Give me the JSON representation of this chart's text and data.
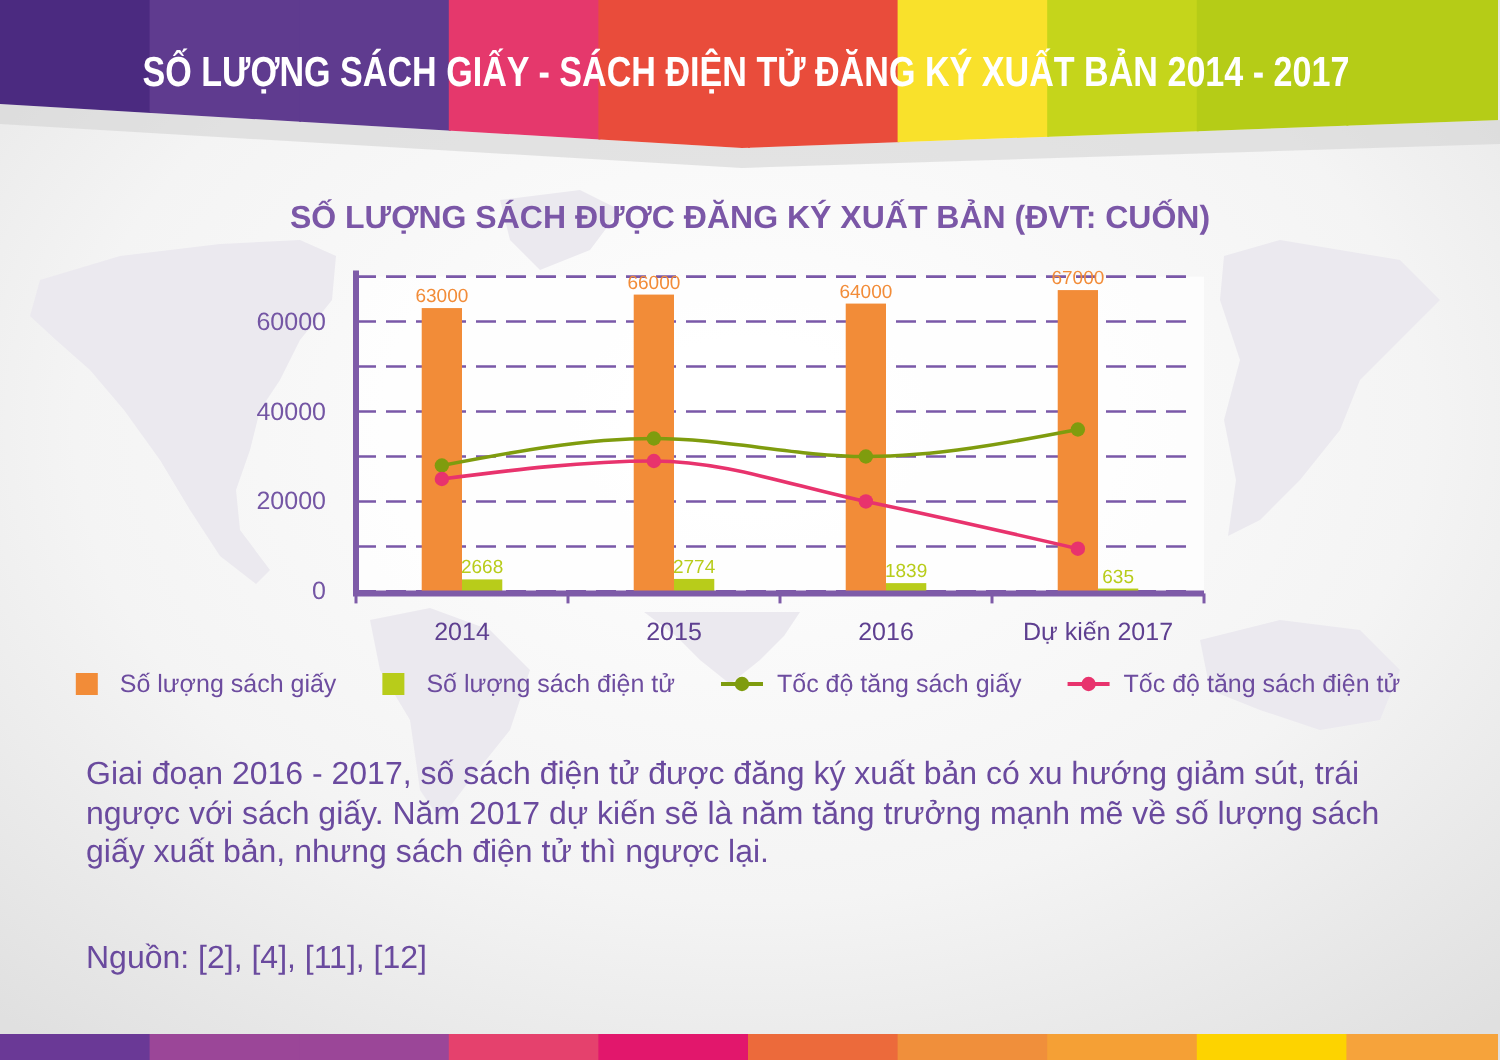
{
  "chart_data": {
    "type": "bar",
    "title": "SỐ LƯỢNG SÁCH GIẤY - SÁCH ĐIỆN TỬ ĐĂNG KÝ XUẤT BẢN 2014 - 2017",
    "subtitle": "SỐ LƯỢNG SÁCH ĐƯỢC ĐĂNG KÝ XUẤT BẢN (ĐVT: CUỐN)",
    "categories": [
      "2014",
      "2015",
      "2016",
      "Dự kiến 2017"
    ],
    "series": [
      {
        "name": "Số lượng sách giấy",
        "color": "#f28c38",
        "values": [
          63000,
          66000,
          64000,
          67000
        ],
        "value_labels": [
          "63000",
          "66000",
          "64000",
          "67000"
        ]
      },
      {
        "name": "Số lượng sách điện tử",
        "color": "#b8cc1a",
        "values": [
          2668,
          2774,
          1839,
          635
        ],
        "value_labels": [
          "2668",
          "2774",
          "1839",
          "635"
        ]
      },
      {
        "name": "Tốc độ tăng sách giấy",
        "type": "line",
        "color": "#7f9c0e",
        "values": [
          28000,
          34000,
          30000,
          36000
        ]
      },
      {
        "name": "Tốc độ tăng sách điện tử",
        "type": "line",
        "color": "#e8336d",
        "values": [
          25000,
          29000,
          20000,
          9500
        ]
      }
    ],
    "ylim": [
      0,
      70000
    ],
    "yticks": [
      0,
      {
        "value": 10000,
        "label": null
      },
      20000,
      {
        "value": 30000,
        "label": null
      },
      40000,
      {
        "value": 50000,
        "label": null
      },
      60000,
      {
        "value": 70000,
        "label": null
      }
    ],
    "grid": "y",
    "legend": "bottom",
    "marker": "circle",
    "annotations": [
      "Giai đoạn 2016 - 2017, số sách điện tử được đăng ký xuất bản có xu hướng giảm sút, trái ngược với sách giấy. Năm 2017 dự kiến sẽ là năm tăng trưởng mạnh mẽ về số lượng sách giấy xuất bản, nhưng sách điện tử thì ngược lại.",
      "Nguồn: [2], [4], [11], [12]"
    ]
  }
}
